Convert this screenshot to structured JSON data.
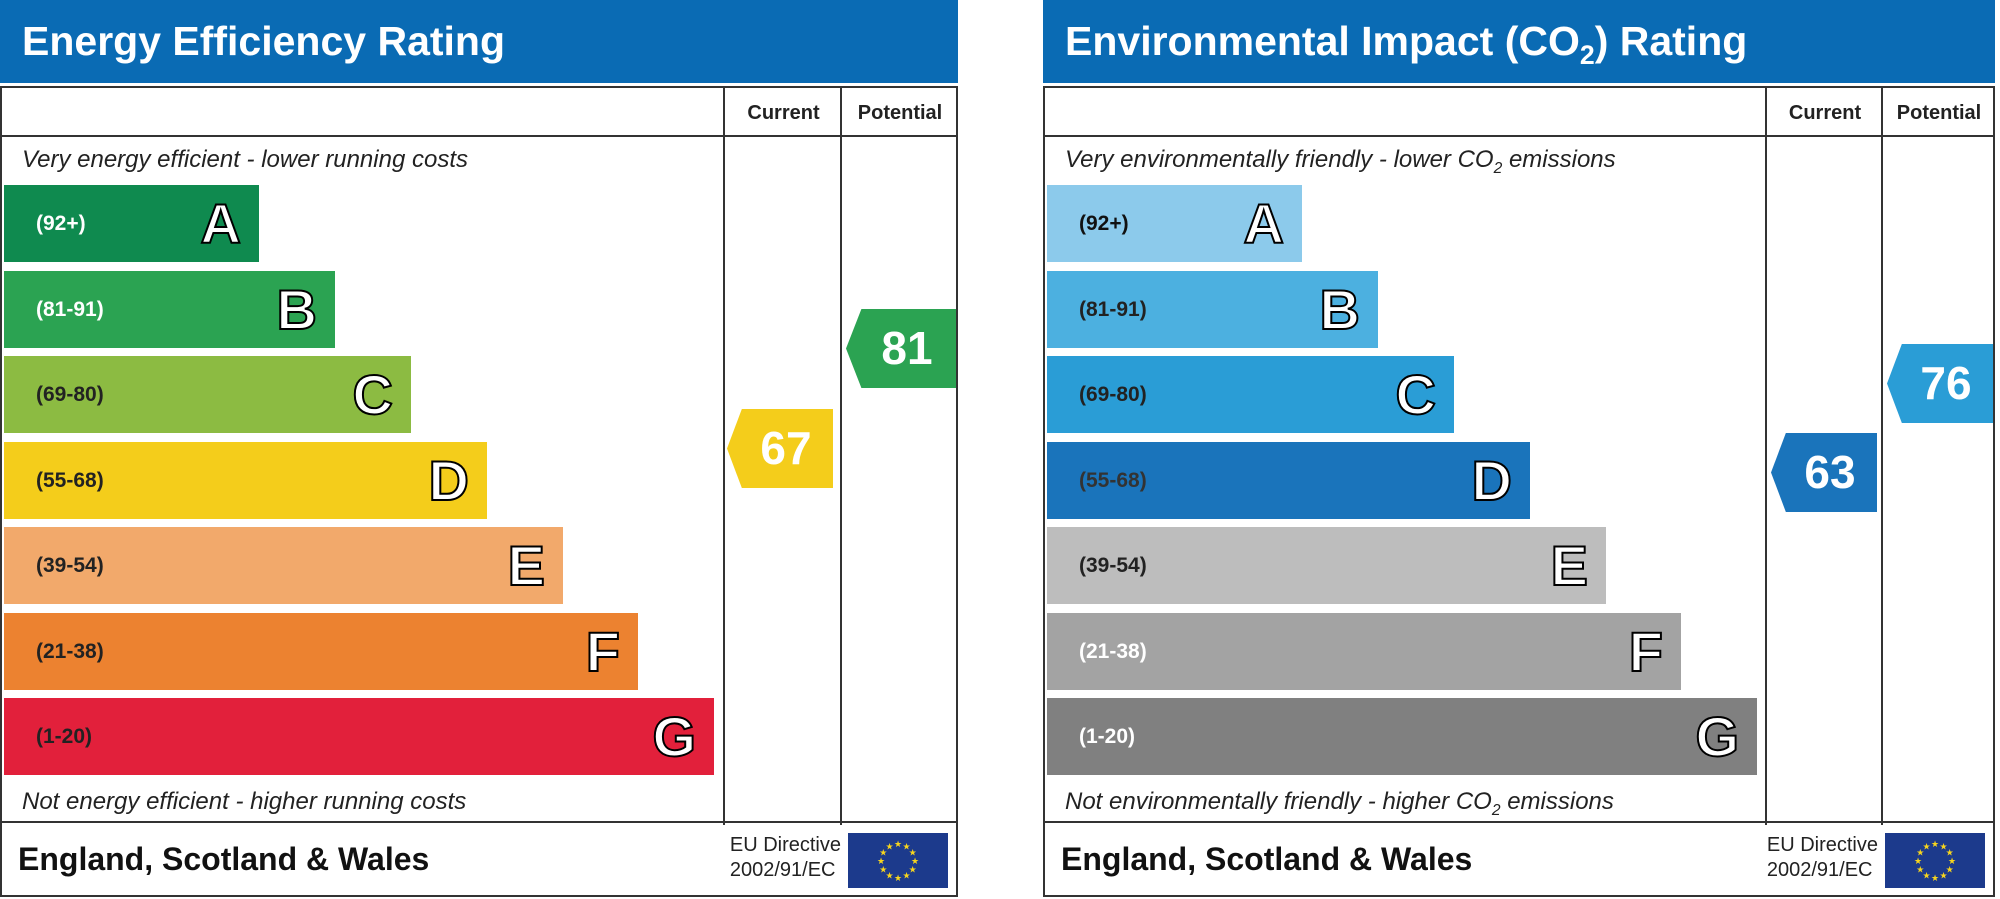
{
  "energy": {
    "title": "Energy Efficiency Rating",
    "current_label": "Current",
    "potential_label": "Potential",
    "top_note": "Very energy efficient - lower running costs",
    "bottom_note": "Not energy efficient - higher running costs",
    "bands": [
      {
        "range": "(92+)",
        "letter": "A",
        "color": "#0f8a4f",
        "text": "#fff"
      },
      {
        "range": "(81-91)",
        "letter": "B",
        "color": "#2ba352",
        "text": "#fff"
      },
      {
        "range": "(69-80)",
        "letter": "C",
        "color": "#8cbb42",
        "text": "#222"
      },
      {
        "range": "(55-68)",
        "letter": "D",
        "color": "#f4cd1b",
        "text": "#222"
      },
      {
        "range": "(39-54)",
        "letter": "E",
        "color": "#f2a96b",
        "text": "#222"
      },
      {
        "range": "(21-38)",
        "letter": "F",
        "color": "#ec8230",
        "text": "#222"
      },
      {
        "range": "(1-20)",
        "letter": "G",
        "color": "#e2203b",
        "text": "#222"
      }
    ],
    "current": {
      "value": "67",
      "color": "#f4cd1b"
    },
    "potential": {
      "value": "81",
      "color": "#2ba352"
    },
    "region": "England, Scotland & Wales",
    "directive_line1": "EU Directive",
    "directive_line2": "2002/91/EC"
  },
  "environment": {
    "title_pre": "Environmental Impact (CO",
    "title_sub": "2",
    "title_post": ") Rating",
    "current_label": "Current",
    "potential_label": "Potential",
    "top_note_pre": "Very environmentally friendly - lower CO",
    "top_note_sub": "2",
    "top_note_post": " emissions",
    "bottom_note_pre": "Not environmentally friendly - higher CO",
    "bottom_note_sub": "2",
    "bottom_note_post": " emissions",
    "bands": [
      {
        "range": "(92+)",
        "letter": "A",
        "color": "#8ccaeb",
        "text": "#111"
      },
      {
        "range": "(81-91)",
        "letter": "B",
        "color": "#4cb0e0",
        "text": "#222"
      },
      {
        "range": "(69-80)",
        "letter": "C",
        "color": "#2a9dd6",
        "text": "#222"
      },
      {
        "range": "(55-68)",
        "letter": "D",
        "color": "#1a74bb",
        "text": "#333"
      },
      {
        "range": "(39-54)",
        "letter": "E",
        "color": "#bdbdbd",
        "text": "#222"
      },
      {
        "range": "(21-38)",
        "letter": "F",
        "color": "#a3a3a3",
        "text": "#fff"
      },
      {
        "range": "(1-20)",
        "letter": "G",
        "color": "#808080",
        "text": "#fff"
      }
    ],
    "current": {
      "value": "63",
      "color": "#1a74bb"
    },
    "potential": {
      "value": "76",
      "color": "#2a9dd6"
    },
    "region": "England, Scotland & Wales",
    "directive_line1": "EU Directive",
    "directive_line2": "2002/91/EC"
  }
}
